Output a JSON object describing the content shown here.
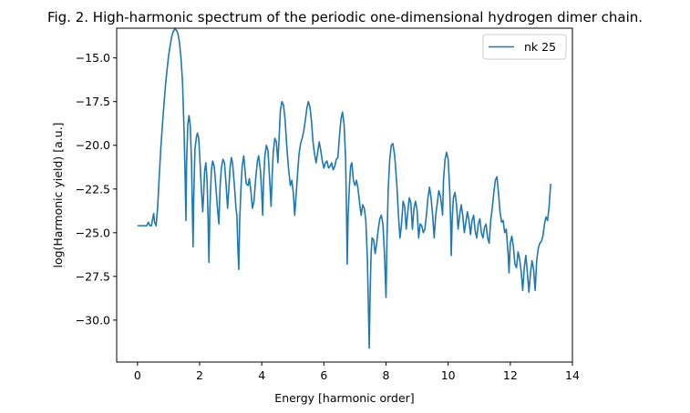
{
  "chart_data": {
    "type": "line",
    "title": "Fig. 2. High-harmonic spectrum of the periodic one-dimensional hydrogen dimer chain.",
    "xlabel": "Energy [harmonic order]",
    "ylabel": "log(Harmonic yield) [a.u.]",
    "xlim": [
      -0.67,
      14.0
    ],
    "ylim": [
      -32.4,
      -13.3
    ],
    "x_ticks": [
      0,
      2,
      4,
      6,
      8,
      10,
      12,
      14
    ],
    "x_tick_labels": [
      "0",
      "2",
      "4",
      "6",
      "8",
      "10",
      "12",
      "14"
    ],
    "y_ticks": [
      -15.0,
      -17.5,
      -20.0,
      -22.5,
      -25.0,
      -27.5,
      -30.0
    ],
    "y_tick_labels": [
      "−15.0",
      "−17.5",
      "−20.0",
      "−22.5",
      "−25.0",
      "−27.5",
      "−30.0"
    ],
    "grid": false,
    "legend": {
      "position": "top-right"
    },
    "series": [
      {
        "name": "nk 25",
        "color": "#1f77b4",
        "points": [
          [
            0.0,
            -24.6
          ],
          [
            0.2,
            -24.6
          ],
          [
            0.3,
            -24.6
          ],
          [
            0.35,
            -24.4
          ],
          [
            0.4,
            -24.6
          ],
          [
            0.45,
            -24.6
          ],
          [
            0.5,
            -24.1
          ],
          [
            0.52,
            -23.9
          ],
          [
            0.55,
            -24.4
          ],
          [
            0.6,
            -24.6
          ],
          [
            0.65,
            -23.5
          ],
          [
            0.7,
            -21.8
          ],
          [
            0.75,
            -20.2
          ],
          [
            0.8,
            -18.9
          ],
          [
            0.85,
            -17.7
          ],
          [
            0.9,
            -16.6
          ],
          [
            0.95,
            -15.7
          ],
          [
            1.0,
            -14.9
          ],
          [
            1.05,
            -14.3
          ],
          [
            1.1,
            -13.8
          ],
          [
            1.15,
            -13.5
          ],
          [
            1.2,
            -13.35
          ],
          [
            1.25,
            -13.4
          ],
          [
            1.3,
            -13.6
          ],
          [
            1.35,
            -14.1
          ],
          [
            1.4,
            -15.0
          ],
          [
            1.45,
            -16.4
          ],
          [
            1.5,
            -19.2
          ],
          [
            1.53,
            -21.5
          ],
          [
            1.56,
            -24.3
          ],
          [
            1.58,
            -21.0
          ],
          [
            1.62,
            -18.8
          ],
          [
            1.66,
            -18.3
          ],
          [
            1.7,
            -18.9
          ],
          [
            1.74,
            -21.0
          ],
          [
            1.77,
            -24.0
          ],
          [
            1.79,
            -25.8
          ],
          [
            1.81,
            -23.0
          ],
          [
            1.85,
            -20.2
          ],
          [
            1.9,
            -19.5
          ],
          [
            1.93,
            -19.3
          ],
          [
            1.97,
            -19.6
          ],
          [
            2.0,
            -20.5
          ],
          [
            2.05,
            -22.3
          ],
          [
            2.1,
            -23.8
          ],
          [
            2.13,
            -22.8
          ],
          [
            2.16,
            -21.5
          ],
          [
            2.2,
            -21.0
          ],
          [
            2.24,
            -22.0
          ],
          [
            2.27,
            -24.0
          ],
          [
            2.3,
            -26.7
          ],
          [
            2.33,
            -23.6
          ],
          [
            2.38,
            -21.4
          ],
          [
            2.42,
            -20.9
          ],
          [
            2.47,
            -21.2
          ],
          [
            2.52,
            -22.3
          ],
          [
            2.57,
            -23.5
          ],
          [
            2.62,
            -24.5
          ],
          [
            2.66,
            -22.3
          ],
          [
            2.7,
            -21.3
          ],
          [
            2.75,
            -20.8
          ],
          [
            2.8,
            -21.0
          ],
          [
            2.85,
            -22.2
          ],
          [
            2.9,
            -23.6
          ],
          [
            2.94,
            -22.5
          ],
          [
            2.98,
            -21.3
          ],
          [
            3.02,
            -20.7
          ],
          [
            3.06,
            -21.0
          ],
          [
            3.12,
            -22.3
          ],
          [
            3.17,
            -23.6
          ],
          [
            3.2,
            -24.0
          ],
          [
            3.23,
            -25.8
          ],
          [
            3.26,
            -27.1
          ],
          [
            3.29,
            -24.3
          ],
          [
            3.33,
            -22.5
          ],
          [
            3.37,
            -21.2
          ],
          [
            3.42,
            -20.6
          ],
          [
            3.46,
            -21.4
          ],
          [
            3.5,
            -22.2
          ],
          [
            3.56,
            -22.3
          ],
          [
            3.6,
            -21.9
          ],
          [
            3.65,
            -22.6
          ],
          [
            3.7,
            -23.6
          ],
          [
            3.75,
            -23.2
          ],
          [
            3.8,
            -22.0
          ],
          [
            3.86,
            -20.9
          ],
          [
            3.9,
            -20.6
          ],
          [
            3.96,
            -21.5
          ],
          [
            4.0,
            -22.8
          ],
          [
            4.03,
            -24.0
          ],
          [
            4.06,
            -22.0
          ],
          [
            4.1,
            -20.6
          ],
          [
            4.15,
            -20.0
          ],
          [
            4.2,
            -20.3
          ],
          [
            4.25,
            -21.8
          ],
          [
            4.3,
            -23.5
          ],
          [
            4.33,
            -22.0
          ],
          [
            4.37,
            -20.4
          ],
          [
            4.42,
            -19.6
          ],
          [
            4.47,
            -19.8
          ],
          [
            4.52,
            -21.0
          ],
          [
            4.56,
            -19.5
          ],
          [
            4.6,
            -18.0
          ],
          [
            4.65,
            -17.5
          ],
          [
            4.7,
            -17.7
          ],
          [
            4.75,
            -18.5
          ],
          [
            4.8,
            -19.9
          ],
          [
            4.86,
            -21.3
          ],
          [
            4.92,
            -22.3
          ],
          [
            4.97,
            -22.0
          ],
          [
            5.02,
            -22.8
          ],
          [
            5.06,
            -24.0
          ],
          [
            5.1,
            -23.0
          ],
          [
            5.15,
            -21.7
          ],
          [
            5.2,
            -20.5
          ],
          [
            5.25,
            -19.9
          ],
          [
            5.3,
            -19.6
          ],
          [
            5.35,
            -19.2
          ],
          [
            5.4,
            -18.6
          ],
          [
            5.45,
            -17.9
          ],
          [
            5.5,
            -17.5
          ],
          [
            5.55,
            -17.8
          ],
          [
            5.6,
            -18.6
          ],
          [
            5.65,
            -19.8
          ],
          [
            5.7,
            -20.5
          ],
          [
            5.75,
            -21.0
          ],
          [
            5.8,
            -20.4
          ],
          [
            5.85,
            -19.8
          ],
          [
            5.9,
            -20.3
          ],
          [
            5.95,
            -20.9
          ],
          [
            6.0,
            -21.3
          ],
          [
            6.05,
            -21.0
          ],
          [
            6.1,
            -20.9
          ],
          [
            6.15,
            -21.3
          ],
          [
            6.2,
            -21.2
          ],
          [
            6.25,
            -21.0
          ],
          [
            6.3,
            -21.4
          ],
          [
            6.35,
            -21.2
          ],
          [
            6.4,
            -20.8
          ],
          [
            6.45,
            -20.7
          ],
          [
            6.5,
            -19.5
          ],
          [
            6.55,
            -18.5
          ],
          [
            6.6,
            -18.1
          ],
          [
            6.65,
            -18.8
          ],
          [
            6.7,
            -20.8
          ],
          [
            6.73,
            -24.0
          ],
          [
            6.75,
            -26.8
          ],
          [
            6.78,
            -24.0
          ],
          [
            6.82,
            -22.4
          ],
          [
            6.86,
            -21.2
          ],
          [
            6.9,
            -21.0
          ],
          [
            6.95,
            -22.0
          ],
          [
            7.0,
            -22.3
          ],
          [
            7.05,
            -22.0
          ],
          [
            7.1,
            -22.5
          ],
          [
            7.15,
            -23.3
          ],
          [
            7.2,
            -24.0
          ],
          [
            7.25,
            -23.4
          ],
          [
            7.3,
            -23.6
          ],
          [
            7.35,
            -24.3
          ],
          [
            7.4,
            -26.5
          ],
          [
            7.43,
            -29.0
          ],
          [
            7.46,
            -31.6
          ],
          [
            7.49,
            -28.3
          ],
          [
            7.52,
            -26.2
          ],
          [
            7.55,
            -25.3
          ],
          [
            7.6,
            -25.4
          ],
          [
            7.65,
            -26.2
          ],
          [
            7.7,
            -25.6
          ],
          [
            7.75,
            -24.8
          ],
          [
            7.8,
            -24.2
          ],
          [
            7.85,
            -24.0
          ],
          [
            7.9,
            -24.5
          ],
          [
            7.95,
            -26.2
          ],
          [
            8.0,
            -28.7
          ],
          [
            8.03,
            -25.5
          ],
          [
            8.07,
            -22.5
          ],
          [
            8.12,
            -20.8
          ],
          [
            8.17,
            -20.0
          ],
          [
            8.22,
            -19.9
          ],
          [
            8.28,
            -20.6
          ],
          [
            8.35,
            -22.3
          ],
          [
            8.4,
            -24.0
          ],
          [
            8.45,
            -25.3
          ],
          [
            8.5,
            -24.5
          ],
          [
            8.55,
            -23.2
          ],
          [
            8.6,
            -23.5
          ],
          [
            8.65,
            -24.8
          ],
          [
            8.7,
            -23.8
          ],
          [
            8.75,
            -23.0
          ],
          [
            8.8,
            -23.3
          ],
          [
            8.85,
            -24.8
          ],
          [
            8.9,
            -23.6
          ],
          [
            8.95,
            -23.2
          ],
          [
            9.0,
            -23.7
          ],
          [
            9.05,
            -25.3
          ],
          [
            9.1,
            -24.5
          ],
          [
            9.15,
            -24.6
          ],
          [
            9.2,
            -25.0
          ],
          [
            9.25,
            -24.8
          ],
          [
            9.3,
            -24.0
          ],
          [
            9.35,
            -23.0
          ],
          [
            9.4,
            -22.4
          ],
          [
            9.45,
            -23.0
          ],
          [
            9.5,
            -24.0
          ],
          [
            9.55,
            -25.3
          ],
          [
            9.6,
            -24.0
          ],
          [
            9.65,
            -23.3
          ],
          [
            9.7,
            -22.6
          ],
          [
            9.75,
            -22.9
          ],
          [
            9.8,
            -23.6
          ],
          [
            9.82,
            -24.0
          ],
          [
            9.85,
            -22.0
          ],
          [
            9.9,
            -20.8
          ],
          [
            9.95,
            -20.4
          ],
          [
            10.0,
            -20.8
          ],
          [
            10.05,
            -22.5
          ],
          [
            10.08,
            -24.4
          ],
          [
            10.1,
            -26.3
          ],
          [
            10.13,
            -24.2
          ],
          [
            10.17,
            -23.0
          ],
          [
            10.22,
            -22.7
          ],
          [
            10.27,
            -23.4
          ],
          [
            10.32,
            -24.8
          ],
          [
            10.37,
            -24.0
          ],
          [
            10.42,
            -23.4
          ],
          [
            10.47,
            -24.0
          ],
          [
            10.52,
            -25.0
          ],
          [
            10.57,
            -24.4
          ],
          [
            10.62,
            -23.8
          ],
          [
            10.67,
            -24.3
          ],
          [
            10.72,
            -25.1
          ],
          [
            10.77,
            -24.3
          ],
          [
            10.82,
            -24.0
          ],
          [
            10.87,
            -24.9
          ],
          [
            10.92,
            -25.3
          ],
          [
            10.97,
            -24.5
          ],
          [
            11.02,
            -24.2
          ],
          [
            11.07,
            -25.0
          ],
          [
            11.12,
            -25.3
          ],
          [
            11.17,
            -24.7
          ],
          [
            11.22,
            -24.5
          ],
          [
            11.27,
            -25.3
          ],
          [
            11.32,
            -25.6
          ],
          [
            11.37,
            -24.3
          ],
          [
            11.42,
            -23.6
          ],
          [
            11.47,
            -22.7
          ],
          [
            11.52,
            -22.0
          ],
          [
            11.57,
            -21.8
          ],
          [
            11.62,
            -22.7
          ],
          [
            11.67,
            -23.8
          ],
          [
            11.72,
            -24.4
          ],
          [
            11.77,
            -24.3
          ],
          [
            11.82,
            -25.0
          ],
          [
            11.87,
            -24.8
          ],
          [
            11.9,
            -25.5
          ],
          [
            11.93,
            -26.2
          ],
          [
            11.96,
            -27.3
          ],
          [
            12.0,
            -25.6
          ],
          [
            12.05,
            -25.2
          ],
          [
            12.1,
            -25.8
          ],
          [
            12.15,
            -26.8
          ],
          [
            12.2,
            -27.0
          ],
          [
            12.25,
            -26.1
          ],
          [
            12.3,
            -26.5
          ],
          [
            12.35,
            -27.2
          ],
          [
            12.4,
            -28.3
          ],
          [
            12.45,
            -27.0
          ],
          [
            12.5,
            -26.3
          ],
          [
            12.55,
            -27.3
          ],
          [
            12.6,
            -28.4
          ],
          [
            12.65,
            -27.3
          ],
          [
            12.7,
            -26.6
          ],
          [
            12.75,
            -27.1
          ],
          [
            12.8,
            -28.3
          ],
          [
            12.85,
            -26.6
          ],
          [
            12.9,
            -25.9
          ],
          [
            12.95,
            -25.6
          ],
          [
            13.0,
            -25.5
          ],
          [
            13.05,
            -25.2
          ],
          [
            13.1,
            -24.5
          ],
          [
            13.15,
            -24.1
          ],
          [
            13.2,
            -24.3
          ],
          [
            13.25,
            -23.5
          ],
          [
            13.3,
            -22.2
          ]
        ]
      }
    ]
  }
}
